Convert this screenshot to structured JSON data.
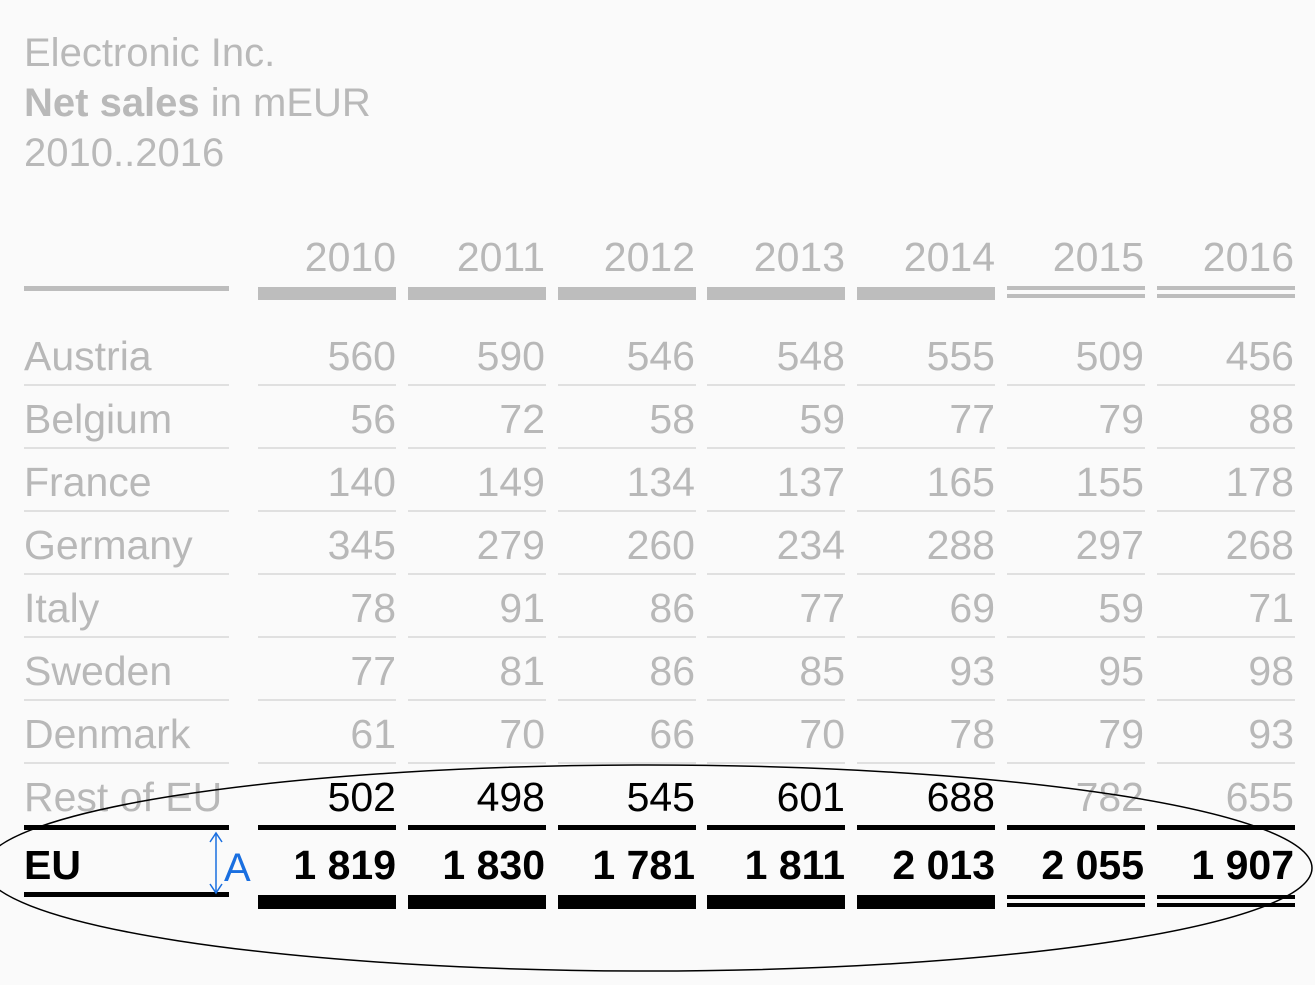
{
  "header": {
    "company": "Electronic Inc.",
    "measure_bold": "Net sales",
    "measure_rest": " in mEUR",
    "period": "2010..2016"
  },
  "table": {
    "years": [
      "2010",
      "2011",
      "2012",
      "2013",
      "2014",
      "2015",
      "2016"
    ],
    "rows": [
      {
        "label": "Austria",
        "values": [
          "560",
          "590",
          "546",
          "548",
          "555",
          "509",
          "456"
        ]
      },
      {
        "label": "Belgium",
        "values": [
          "56",
          "72",
          "58",
          "59",
          "77",
          "79",
          "88"
        ]
      },
      {
        "label": "France",
        "values": [
          "140",
          "149",
          "134",
          "137",
          "165",
          "155",
          "178"
        ]
      },
      {
        "label": "Germany",
        "values": [
          "345",
          "279",
          "260",
          "234",
          "288",
          "297",
          "268"
        ]
      },
      {
        "label": "Italy",
        "values": [
          "78",
          "91",
          "86",
          "77",
          "69",
          "59",
          "71"
        ]
      },
      {
        "label": "Sweden",
        "values": [
          "77",
          "81",
          "86",
          "85",
          "93",
          "95",
          "98"
        ]
      },
      {
        "label": "Denmark",
        "values": [
          "61",
          "70",
          "66",
          "70",
          "78",
          "79",
          "93"
        ]
      },
      {
        "label": "Rest of EU",
        "values": [
          "502",
          "498",
          "545",
          "601",
          "688",
          "782",
          "655"
        ]
      }
    ],
    "total": {
      "label": "EU",
      "values": [
        "1 819",
        "1 830",
        "1 781",
        "1 811",
        "2 013",
        "2 055",
        "1 907"
      ]
    }
  },
  "annotation": {
    "marker_label": "A",
    "highlight_color": "#1a6fe0"
  },
  "colors": {
    "muted": "#b8b8b8",
    "emphasis": "#000000",
    "background": "#fafafa"
  }
}
